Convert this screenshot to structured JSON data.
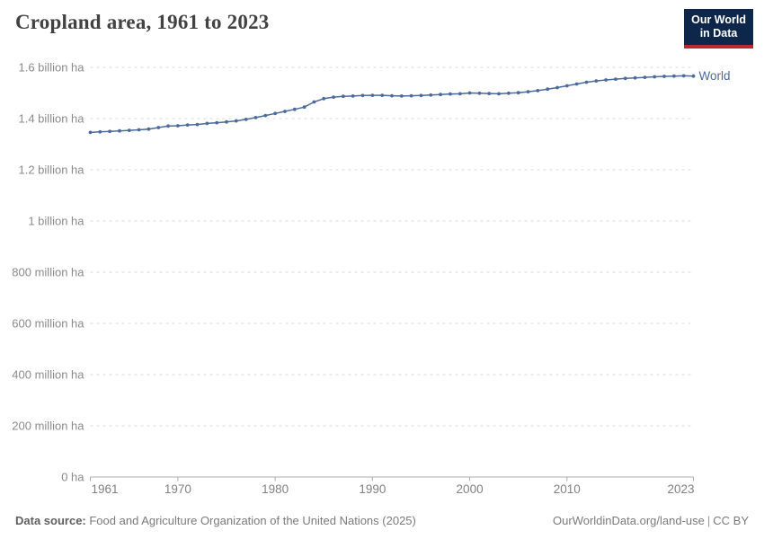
{
  "header": {
    "title": "Cropland area, 1961 to 2023",
    "logo": {
      "line1": "Our World",
      "line2": "in Data",
      "bg_color": "#0d264a",
      "accent_color": "#be282d"
    }
  },
  "footer": {
    "datasource_label": "Data source:",
    "datasource_text": " Food and Agriculture Organization of the United Nations (2025)",
    "link_text": "OurWorldinData.org/land-use",
    "separator": "|",
    "license_text": "CC BY"
  },
  "chart_data": {
    "type": "line",
    "title": "Cropland area, 1961 to 2023",
    "xlabel": "",
    "ylabel": "",
    "unit": "million ha",
    "xlim": [
      1961,
      2023
    ],
    "ylim": [
      0,
      1600
    ],
    "grid": "horizontal-dashed",
    "legend_position": "line-end-label",
    "x_ticks": [
      1961,
      1970,
      1980,
      1990,
      2000,
      2010,
      2023
    ],
    "y_ticks": [
      {
        "value": 0,
        "label": "0 ha"
      },
      {
        "value": 200,
        "label": "200 million ha"
      },
      {
        "value": 400,
        "label": "400 million ha"
      },
      {
        "value": 600,
        "label": "600 million ha"
      },
      {
        "value": 800,
        "label": "800 million ha"
      },
      {
        "value": 1000,
        "label": "1 billion ha"
      },
      {
        "value": 1200,
        "label": "1.2 billion ha"
      },
      {
        "value": 1400,
        "label": "1.4 billion ha"
      },
      {
        "value": 1600,
        "label": "1.6 billion ha"
      }
    ],
    "series": [
      {
        "name": "World",
        "color": "#4C6A9C",
        "x": [
          1961,
          1962,
          1963,
          1964,
          1965,
          1966,
          1967,
          1968,
          1969,
          1970,
          1971,
          1972,
          1973,
          1974,
          1975,
          1976,
          1977,
          1978,
          1979,
          1980,
          1981,
          1982,
          1983,
          1984,
          1985,
          1986,
          1987,
          1988,
          1989,
          1990,
          1991,
          1992,
          1993,
          1994,
          1995,
          1996,
          1997,
          1998,
          1999,
          2000,
          2001,
          2002,
          2003,
          2004,
          2005,
          2006,
          2007,
          2008,
          2009,
          2010,
          2011,
          2012,
          2013,
          2014,
          2015,
          2016,
          2017,
          2018,
          2019,
          2020,
          2021,
          2022,
          2023
        ],
        "values": [
          1346,
          1348,
          1350,
          1352,
          1354,
          1356,
          1359,
          1365,
          1371,
          1372,
          1375,
          1377,
          1381,
          1384,
          1387,
          1391,
          1397,
          1404,
          1412,
          1420,
          1428,
          1436,
          1445,
          1465,
          1478,
          1484,
          1487,
          1488,
          1490,
          1491,
          1491,
          1489,
          1488,
          1489,
          1490,
          1492,
          1494,
          1496,
          1497,
          1500,
          1499,
          1498,
          1497,
          1499,
          1501,
          1505,
          1509,
          1515,
          1521,
          1528,
          1535,
          1542,
          1547,
          1551,
          1554,
          1557,
          1559,
          1561,
          1563,
          1565,
          1566,
          1567,
          1566
        ]
      }
    ],
    "style": {
      "gridline_color": "#d9d9d9",
      "axis_color": "#adadad",
      "tick_label_color": "#818181",
      "y_label_color": "#8b8b8b"
    }
  }
}
